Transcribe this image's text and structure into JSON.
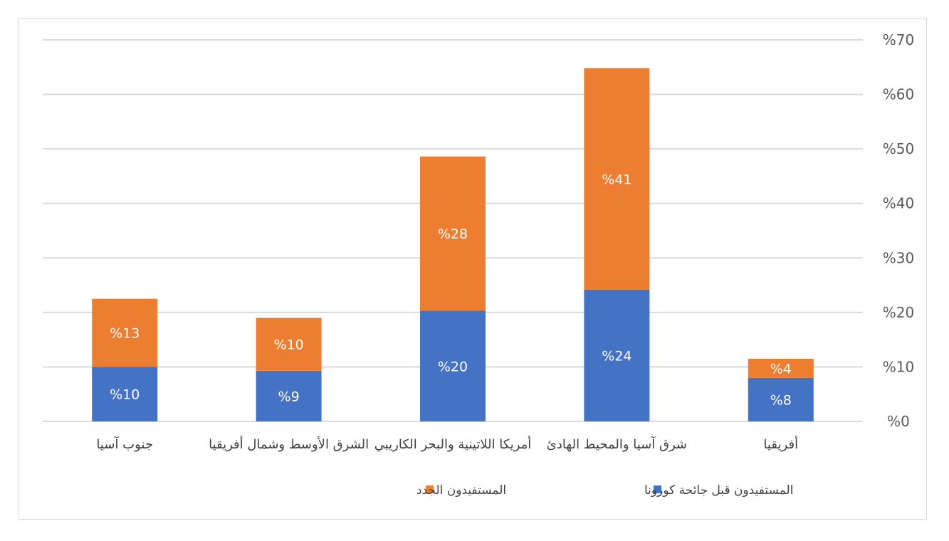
{
  "chart_data": {
    "type": "bar",
    "stacked": true,
    "grid": true,
    "legend_position": "bottom",
    "y_axis_position": "right",
    "ylim": [
      0,
      70
    ],
    "y_ticks": [
      0,
      10,
      20,
      30,
      40,
      50,
      60,
      70
    ],
    "y_tick_labels": [
      "%0",
      "%10",
      "%20",
      "%30",
      "%40",
      "%50",
      "%60",
      "%70"
    ],
    "categories": [
      "جنوب آسيا",
      "الشرق الأوسط وشمال أفريقيا",
      "أمريكا اللاتينية والبحر الكاريبي",
      "شرق آسيا والمحيط الهادئ",
      "أفريقيا"
    ],
    "series": [
      {
        "name": "المستفيدون قبل جائحة كورونا",
        "color": "#4472c4",
        "values": [
          10,
          9.3,
          20.3,
          24.2,
          8
        ],
        "labels": [
          "%10",
          "%9",
          "%20",
          "%24",
          "%8"
        ]
      },
      {
        "name": "المستفيدون الجدد",
        "color": "#ed7d31",
        "values": [
          12.5,
          9.7,
          28.3,
          40.6,
          3.5
        ],
        "labels": [
          "%13",
          "%10",
          "%28",
          "%41",
          "%4"
        ]
      }
    ]
  },
  "colors": {
    "grid": "#d9d9d9",
    "axis_text": "#595959"
  }
}
